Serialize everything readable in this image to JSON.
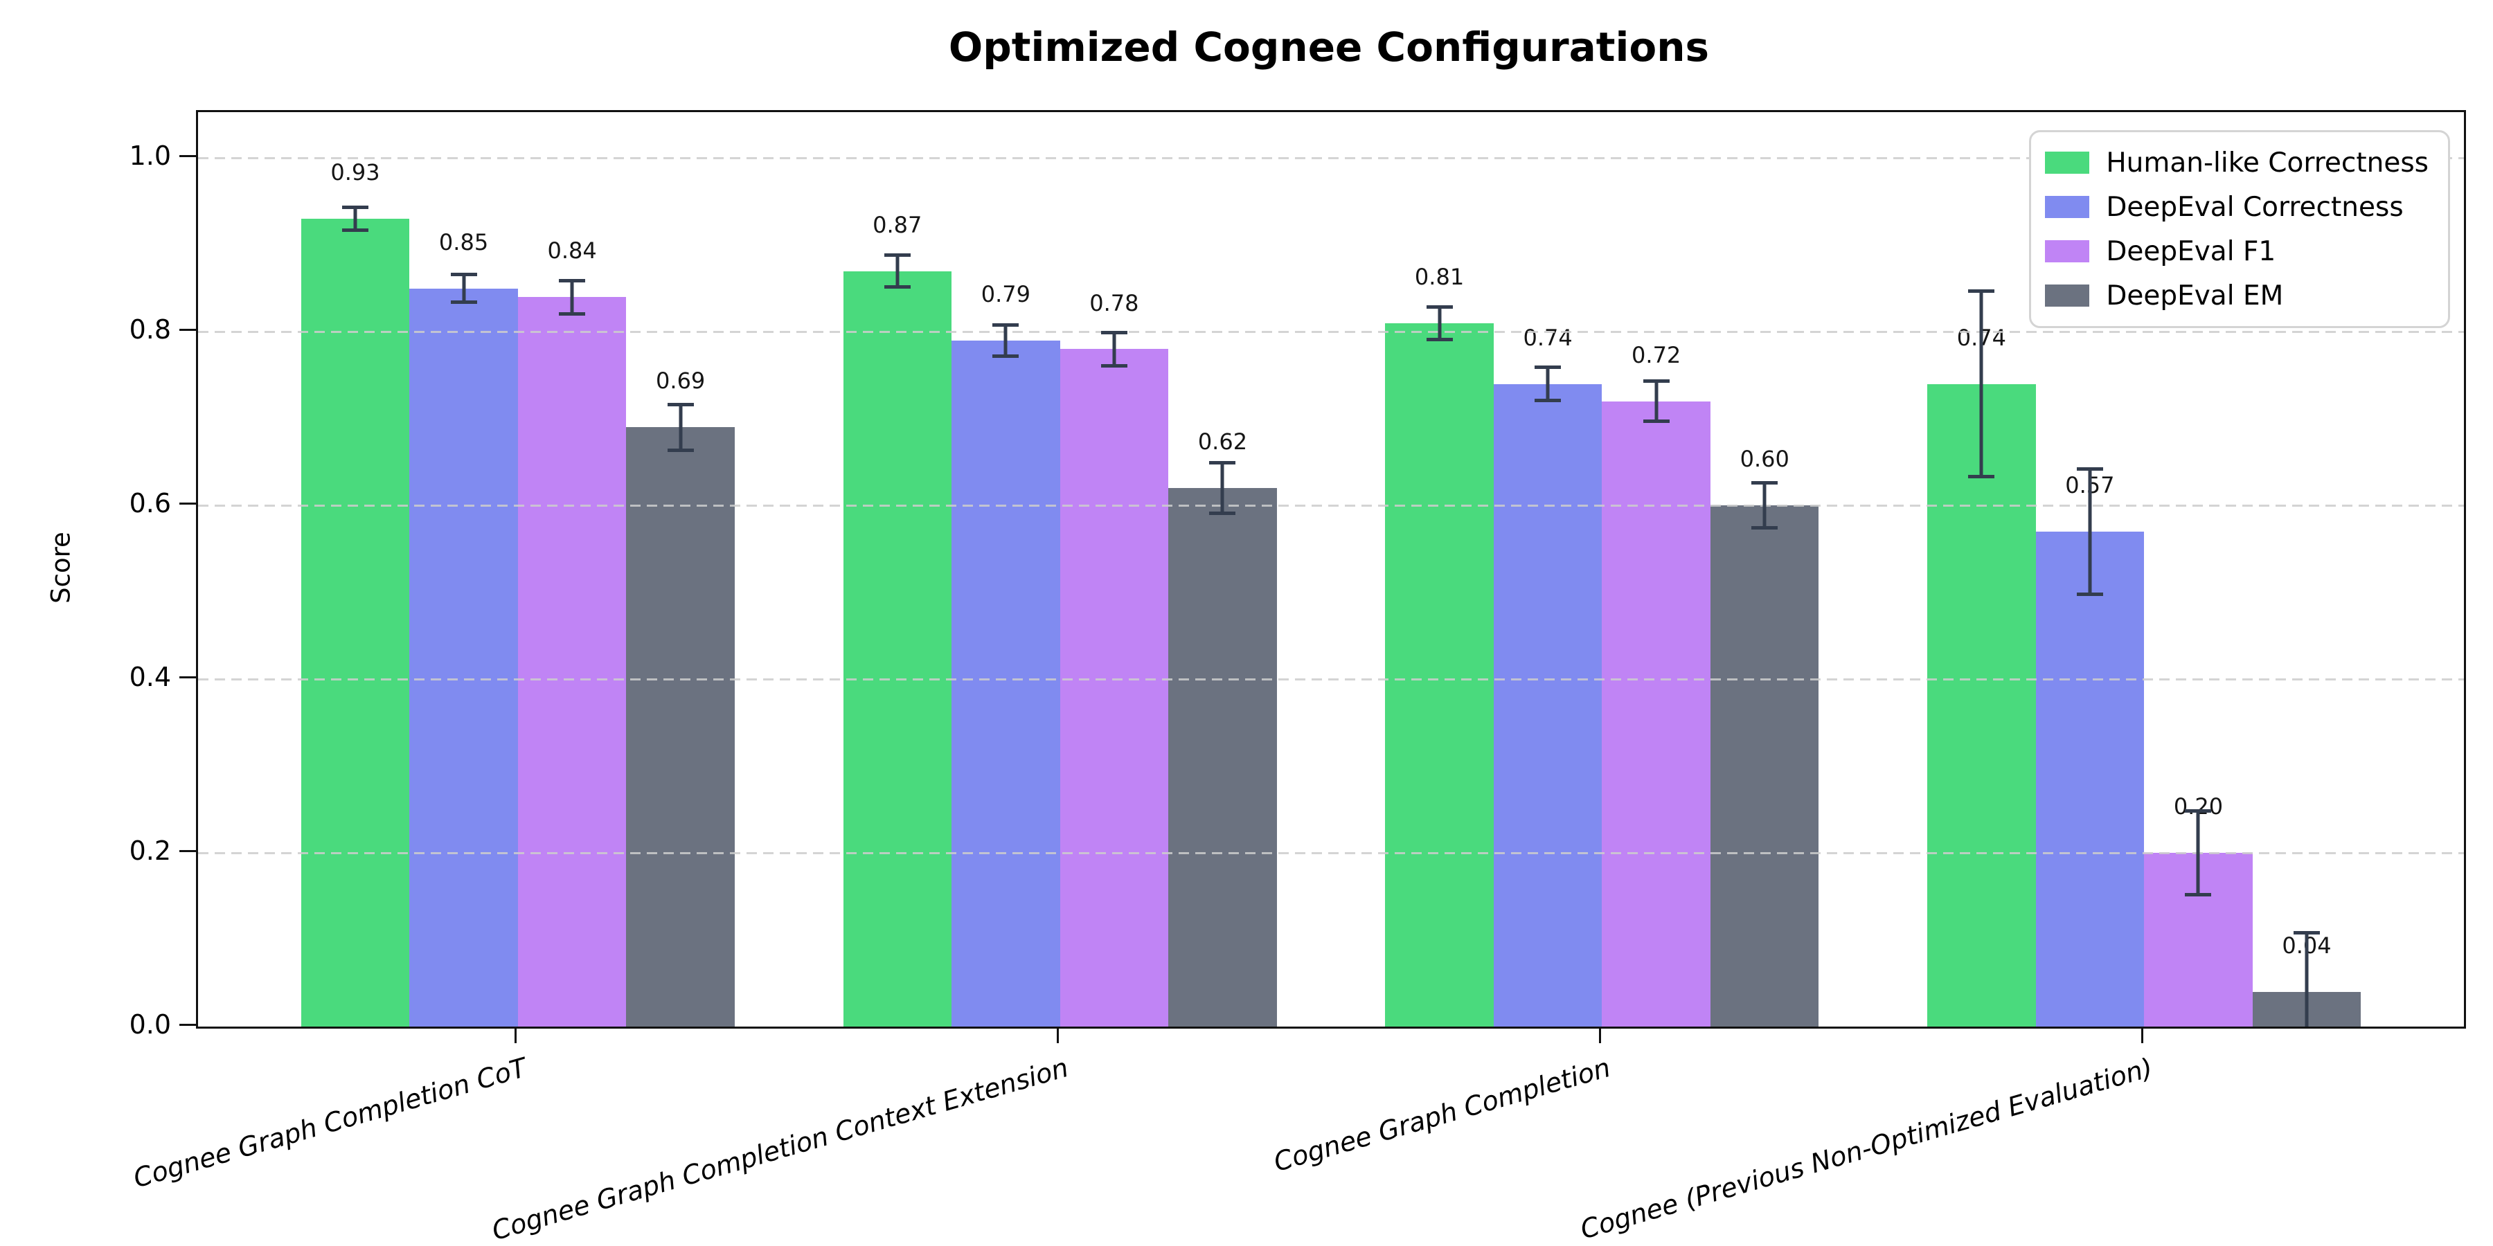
{
  "chart_data": {
    "type": "bar",
    "title": "Optimized Cognee Configurations",
    "ylabel": "Score",
    "xlabel": "",
    "categories": [
      "Cognee Graph Completion CoT",
      "Cognee Graph Completion Context Extension",
      "Cognee Graph Completion",
      "Cognee (Previous Non-Optimized Evaluation)"
    ],
    "series": [
      {
        "name": "Human-like Correctness",
        "color": "#4ada7d",
        "values": [
          0.93,
          0.87,
          0.81,
          0.74
        ],
        "errors": [
          0.015,
          0.02,
          0.021,
          0.109
        ]
      },
      {
        "name": "DeepEval Correctness",
        "color": "#808bf0",
        "values": [
          0.85,
          0.79,
          0.74,
          0.57
        ],
        "errors": [
          0.018,
          0.02,
          0.021,
          0.074
        ]
      },
      {
        "name": "DeepEval F1",
        "color": "#c084f5",
        "values": [
          0.84,
          0.78,
          0.72,
          0.2
        ],
        "errors": [
          0.021,
          0.021,
          0.025,
          0.05
        ]
      },
      {
        "name": "DeepEval EM",
        "color": "#6b7280",
        "values": [
          0.69,
          0.62,
          0.6,
          0.04
        ],
        "errors": [
          0.028,
          0.031,
          0.028,
          0.07
        ]
      }
    ],
    "yticks": [
      "0.0",
      "0.2",
      "0.4",
      "0.6",
      "0.8",
      "1.0"
    ],
    "ylim": [
      0,
      1.05
    ],
    "grid": {
      "axis": "y",
      "style": "dashed",
      "color": "#cdcdcd"
    },
    "legend_position": "upper right",
    "error_bar_color": "#333d4e",
    "value_label_format": "2-decimals"
  }
}
